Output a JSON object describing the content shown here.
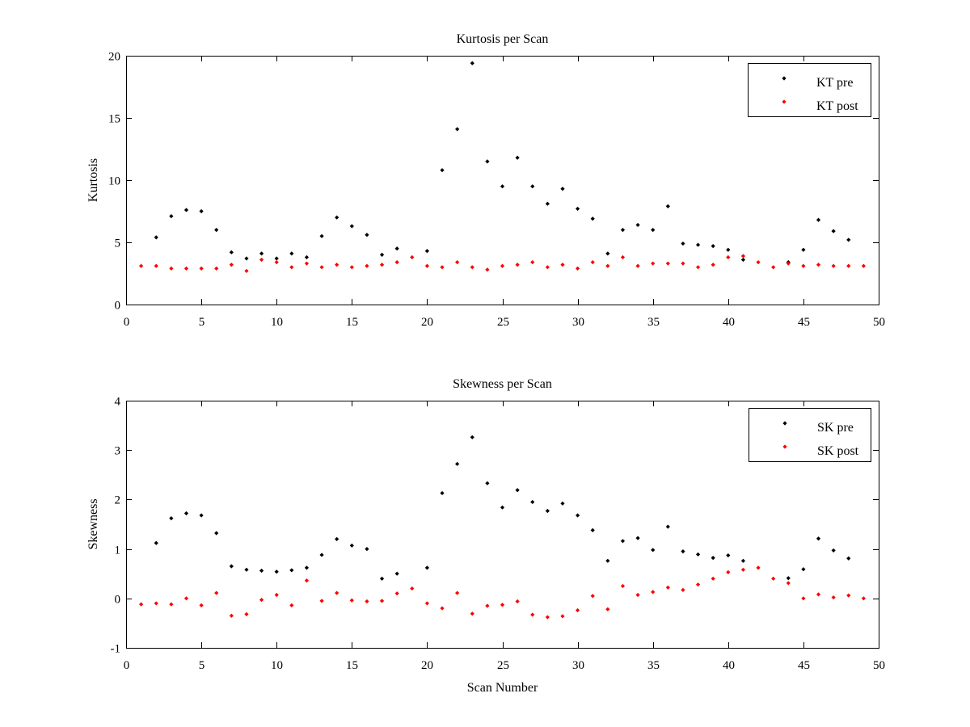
{
  "chart_data": [
    {
      "type": "scatter",
      "title": "Kurtosis per Scan",
      "xlabel": "",
      "ylabel": "Kurtosis",
      "xlim": [
        0,
        50
      ],
      "ylim": [
        0,
        20
      ],
      "xticks": [
        0,
        5,
        10,
        15,
        20,
        25,
        30,
        35,
        40,
        45,
        50
      ],
      "yticks": [
        0,
        5,
        10,
        15,
        20
      ],
      "grid": false,
      "legend_position": "top-right",
      "series": [
        {
          "name": "KT pre",
          "color": "#000000",
          "x": [
            2,
            3,
            4,
            5,
            6,
            7,
            8,
            9,
            10,
            11,
            12,
            13,
            14,
            15,
            16,
            17,
            18,
            20,
            21,
            22,
            23,
            24,
            25,
            26,
            27,
            28,
            29,
            30,
            31,
            32,
            33,
            34,
            35,
            36,
            37,
            38,
            39,
            40,
            41,
            44,
            45,
            46,
            47,
            48
          ],
          "y": [
            5.4,
            7.1,
            7.6,
            7.5,
            6.0,
            4.2,
            3.7,
            4.1,
            3.7,
            4.1,
            3.8,
            5.5,
            7.0,
            6.3,
            5.6,
            4.0,
            4.5,
            4.3,
            10.8,
            14.1,
            19.4,
            11.5,
            9.5,
            11.8,
            9.5,
            8.1,
            9.3,
            7.7,
            6.9,
            4.1,
            6.0,
            6.4,
            6.0,
            7.9,
            4.9,
            4.8,
            4.7,
            4.4,
            3.6,
            3.4,
            4.4,
            6.8,
            5.9,
            5.2
          ]
        },
        {
          "name": "KT post",
          "color": "#ff0000",
          "x": [
            1,
            2,
            3,
            4,
            5,
            6,
            7,
            8,
            9,
            10,
            11,
            12,
            13,
            14,
            15,
            16,
            17,
            18,
            19,
            20,
            21,
            22,
            23,
            24,
            25,
            26,
            27,
            28,
            29,
            30,
            31,
            32,
            33,
            34,
            35,
            36,
            37,
            38,
            39,
            40,
            41,
            42,
            43,
            44,
            45,
            46,
            47,
            48,
            49
          ],
          "y": [
            3.1,
            3.1,
            2.9,
            2.9,
            2.9,
            2.9,
            3.2,
            2.7,
            3.6,
            3.4,
            3.0,
            3.3,
            3.0,
            3.2,
            3.0,
            3.1,
            3.2,
            3.4,
            3.8,
            3.1,
            3.0,
            3.4,
            3.0,
            2.8,
            3.1,
            3.2,
            3.4,
            3.0,
            3.2,
            2.9,
            3.4,
            3.1,
            3.8,
            3.1,
            3.3,
            3.3,
            3.3,
            3.0,
            3.2,
            3.8,
            3.9,
            3.4,
            3.0,
            3.3,
            3.1,
            3.2,
            3.1,
            3.1,
            3.1
          ]
        }
      ]
    },
    {
      "type": "scatter",
      "title": "Skewness per Scan",
      "xlabel": "Scan Number",
      "ylabel": "Skewness",
      "xlim": [
        0,
        50
      ],
      "ylim": [
        -1,
        4
      ],
      "xticks": [
        0,
        5,
        10,
        15,
        20,
        25,
        30,
        35,
        40,
        45,
        50
      ],
      "yticks": [
        -1,
        0,
        1,
        2,
        3,
        4
      ],
      "grid": false,
      "legend_position": "top-right",
      "series": [
        {
          "name": "SK pre",
          "color": "#000000",
          "x": [
            2,
            3,
            4,
            5,
            6,
            7,
            8,
            9,
            10,
            11,
            12,
            13,
            14,
            15,
            16,
            17,
            18,
            20,
            21,
            22,
            23,
            24,
            25,
            26,
            27,
            28,
            29,
            30,
            31,
            32,
            33,
            34,
            35,
            36,
            37,
            38,
            39,
            40,
            41,
            44,
            45,
            46,
            47,
            48
          ],
          "y": [
            1.12,
            1.62,
            1.72,
            1.68,
            1.32,
            0.65,
            0.58,
            0.56,
            0.54,
            0.57,
            0.62,
            0.88,
            1.2,
            1.07,
            1.0,
            0.4,
            0.5,
            0.62,
            2.13,
            2.72,
            3.26,
            2.33,
            1.84,
            2.19,
            1.95,
            1.77,
            1.92,
            1.68,
            1.38,
            0.76,
            1.16,
            1.22,
            0.98,
            1.45,
            0.95,
            0.89,
            0.82,
            0.87,
            0.76,
            0.41,
            0.59,
            1.21,
            0.97,
            0.81
          ]
        },
        {
          "name": "SK post",
          "color": "#ff0000",
          "x": [
            1,
            2,
            3,
            4,
            5,
            6,
            7,
            8,
            9,
            10,
            11,
            12,
            13,
            14,
            15,
            16,
            17,
            18,
            19,
            20,
            21,
            22,
            23,
            24,
            25,
            26,
            27,
            28,
            29,
            30,
            31,
            32,
            33,
            34,
            35,
            36,
            37,
            38,
            39,
            40,
            41,
            42,
            43,
            44,
            45,
            46,
            47,
            48,
            49
          ],
          "y": [
            -0.12,
            -0.1,
            -0.12,
            0.0,
            -0.14,
            0.11,
            -0.35,
            -0.32,
            -0.03,
            0.07,
            -0.14,
            0.36,
            -0.05,
            0.11,
            -0.04,
            -0.06,
            -0.05,
            0.1,
            0.2,
            -0.1,
            -0.2,
            0.11,
            -0.31,
            -0.15,
            -0.13,
            -0.06,
            -0.33,
            -0.38,
            -0.36,
            -0.24,
            0.05,
            -0.22,
            0.25,
            0.07,
            0.13,
            0.22,
            0.17,
            0.28,
            0.4,
            0.53,
            0.58,
            0.62,
            0.4,
            0.31,
            0.0,
            0.08,
            0.02,
            0.06,
            0.0
          ]
        }
      ]
    }
  ]
}
